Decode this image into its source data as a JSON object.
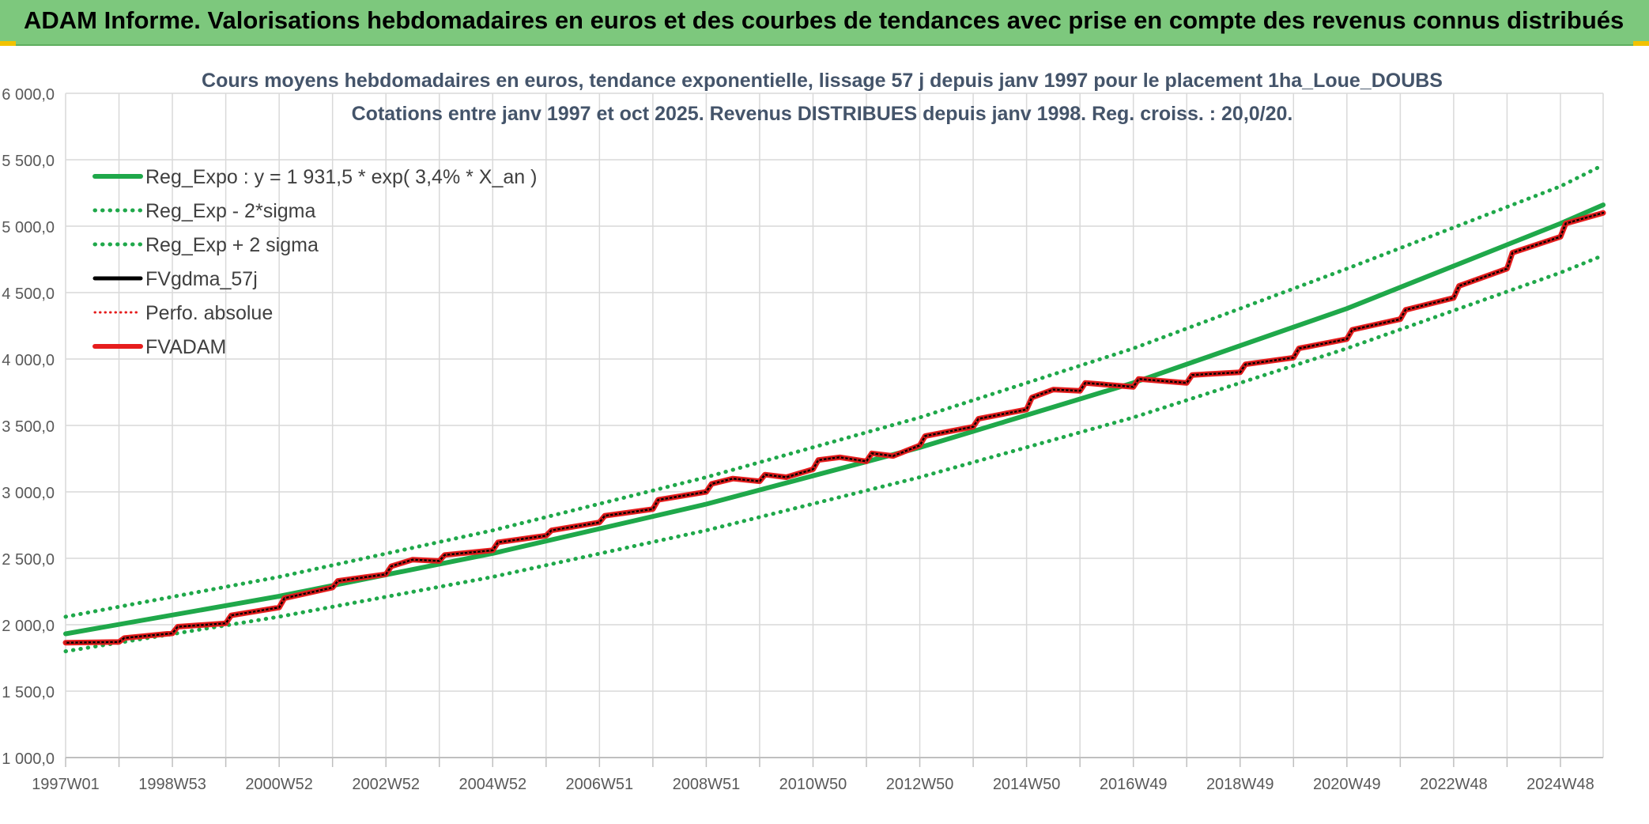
{
  "banner": {
    "title": "ADAM Informe. Valorisations hebdomadaires en euros et des courbes de tendances avec prise en compte des revenus connus distribués",
    "background": "#7dc87d"
  },
  "chart_data": {
    "type": "line",
    "title": "Cours moyens hebdomadaires en euros, tendance exponentielle, lissage 57 j depuis janv 1997 pour le placement 1ha_Loue_DOUBS",
    "subtitle": "Cotations entre janv 1997 et oct 2025. Revenus DISTRIBUES depuis janv 1998. Reg. croiss. : 20,0/20.",
    "xlabel": "",
    "ylabel": "",
    "x_range": [
      1997.0,
      2025.8
    ],
    "ylim": [
      1000,
      6000
    ],
    "y_ticks": [
      1000,
      1500,
      2000,
      2500,
      3000,
      3500,
      4000,
      4500,
      5000,
      5500,
      6000
    ],
    "y_tick_labels": [
      "1 000,0",
      "1 500,0",
      "2 000,0",
      "2 500,0",
      "3 000,0",
      "3 500,0",
      "4 000,0",
      "4 500,0",
      "5 000,0",
      "5 500,0",
      "6 000,0"
    ],
    "x_tick_labels": [
      {
        "label": "1997W01",
        "x": 1997.0
      },
      {
        "label": "1998W53",
        "x": 1999.0
      },
      {
        "label": "2000W52",
        "x": 2001.0
      },
      {
        "label": "2002W52",
        "x": 2003.0
      },
      {
        "label": "2004W52",
        "x": 2005.0
      },
      {
        "label": "2006W51",
        "x": 2007.0
      },
      {
        "label": "2008W51",
        "x": 2009.0
      },
      {
        "label": "2010W50",
        "x": 2011.0
      },
      {
        "label": "2012W50",
        "x": 2013.0
      },
      {
        "label": "2014W50",
        "x": 2015.0
      },
      {
        "label": "2016W49",
        "x": 2017.0
      },
      {
        "label": "2018W49",
        "x": 2019.0
      },
      {
        "label": "2020W49",
        "x": 2021.0
      },
      {
        "label": "2022W48",
        "x": 2023.0
      },
      {
        "label": "2024W48",
        "x": 2025.0
      }
    ],
    "minor_gridlines_x": [
      1998.0,
      2000.0,
      2002.0,
      2004.0,
      2006.0,
      2008.0,
      2010.0,
      2012.0,
      2014.0,
      2016.0,
      2018.0,
      2020.0,
      2022.0,
      2024.0
    ],
    "grid": true,
    "legend_position": "top-left",
    "series": [
      {
        "name": "Reg_Expo : y = 1 931,5 * exp( 3,4% *  X_an )",
        "color": "#1fa84a",
        "style": "solid",
        "x": [
          1997.0,
          2001.0,
          2005.0,
          2009.0,
          2013.0,
          2017.0,
          2021.0,
          2025.0,
          2025.8
        ],
        "values": [
          1931.5,
          2214,
          2537,
          2908,
          3334,
          3821,
          4380,
          5020,
          5160
        ]
      },
      {
        "name": "Reg_Exp - 2*sigma",
        "color": "#1fa84a",
        "style": "dotted",
        "x": [
          1997.0,
          2001.0,
          2005.0,
          2009.0,
          2013.0,
          2017.0,
          2021.0,
          2025.0,
          2025.8
        ],
        "values": [
          1800,
          2060,
          2360,
          2710,
          3110,
          3560,
          4080,
          4650,
          4780
        ]
      },
      {
        "name": "Reg_Exp + 2 sigma",
        "color": "#1fa84a",
        "style": "dotted",
        "x": [
          1997.0,
          2001.0,
          2005.0,
          2009.0,
          2013.0,
          2017.0,
          2021.0,
          2025.0,
          2025.8
        ],
        "values": [
          2060,
          2360,
          2710,
          3110,
          3560,
          4080,
          4680,
          5300,
          5460
        ]
      },
      {
        "name": "FVgdma_57j",
        "color": "#000000",
        "style": "solid",
        "x": [
          1997.0,
          1998.0,
          1998.1,
          1999.0,
          1999.1,
          2000.0,
          2000.1,
          2001.0,
          2001.1,
          2002.0,
          2002.1,
          2003.0,
          2003.1,
          2003.5,
          2004.0,
          2004.1,
          2005.0,
          2005.1,
          2006.0,
          2006.1,
          2007.0,
          2007.1,
          2008.0,
          2008.1,
          2009.0,
          2009.1,
          2009.5,
          2010.0,
          2010.1,
          2010.5,
          2011.0,
          2011.1,
          2011.5,
          2012.0,
          2012.1,
          2012.5,
          2013.0,
          2013.1,
          2014.0,
          2014.1,
          2015.0,
          2015.1,
          2015.5,
          2016.0,
          2016.1,
          2017.0,
          2017.1,
          2018.0,
          2018.1,
          2019.0,
          2019.1,
          2020.0,
          2020.1,
          2021.0,
          2021.1,
          2022.0,
          2022.1,
          2023.0,
          2023.1,
          2024.0,
          2024.1,
          2025.0,
          2025.1,
          2025.8
        ],
        "values": [
          1865,
          1870,
          1900,
          1935,
          1985,
          2010,
          2070,
          2130,
          2200,
          2280,
          2330,
          2380,
          2440,
          2490,
          2480,
          2525,
          2560,
          2620,
          2670,
          2710,
          2770,
          2820,
          2870,
          2940,
          3000,
          3060,
          3100,
          3080,
          3130,
          3110,
          3170,
          3240,
          3260,
          3230,
          3290,
          3270,
          3350,
          3420,
          3490,
          3550,
          3620,
          3710,
          3770,
          3760,
          3820,
          3790,
          3850,
          3820,
          3880,
          3900,
          3960,
          4010,
          4080,
          4150,
          4220,
          4300,
          4370,
          4460,
          4550,
          4680,
          4800,
          4920,
          5020,
          5100
        ]
      },
      {
        "name": "Perfo. absolue",
        "color": "#e61d1d",
        "style": "dotted",
        "x": [
          1997.0,
          1998.0,
          1998.1,
          1999.0,
          1999.1,
          2000.0,
          2000.1,
          2001.0,
          2001.1,
          2002.0,
          2002.1,
          2003.0,
          2003.1,
          2003.5,
          2004.0,
          2004.1,
          2005.0,
          2005.1,
          2006.0,
          2006.1,
          2007.0,
          2007.1,
          2008.0,
          2008.1,
          2009.0,
          2009.1,
          2009.5,
          2010.0,
          2010.1,
          2010.5,
          2011.0,
          2011.1,
          2011.5,
          2012.0,
          2012.1,
          2012.5,
          2013.0,
          2013.1,
          2014.0,
          2014.1,
          2015.0,
          2015.1,
          2015.5,
          2016.0,
          2016.1,
          2017.0,
          2017.1,
          2018.0,
          2018.1,
          2019.0,
          2019.1,
          2020.0,
          2020.1,
          2021.0,
          2021.1,
          2022.0,
          2022.1,
          2023.0,
          2023.1,
          2024.0,
          2024.1,
          2025.0,
          2025.1,
          2025.8
        ],
        "values": [
          1865,
          1870,
          1900,
          1935,
          1985,
          2010,
          2070,
          2130,
          2200,
          2280,
          2330,
          2380,
          2440,
          2490,
          2480,
          2525,
          2560,
          2620,
          2670,
          2710,
          2770,
          2820,
          2870,
          2940,
          3000,
          3060,
          3100,
          3080,
          3130,
          3110,
          3170,
          3240,
          3260,
          3230,
          3290,
          3270,
          3350,
          3420,
          3490,
          3550,
          3620,
          3710,
          3770,
          3760,
          3820,
          3790,
          3850,
          3820,
          3880,
          3900,
          3960,
          4010,
          4080,
          4150,
          4220,
          4300,
          4370,
          4460,
          4550,
          4680,
          4800,
          4920,
          5020,
          5100
        ]
      },
      {
        "name": "FVADAM",
        "color": "#e61d1d",
        "style": "solid",
        "x": [
          1997.0,
          1998.0,
          1998.1,
          1999.0,
          1999.1,
          2000.0,
          2000.1,
          2001.0,
          2001.1,
          2002.0,
          2002.1,
          2003.0,
          2003.1,
          2003.5,
          2004.0,
          2004.1,
          2005.0,
          2005.1,
          2006.0,
          2006.1,
          2007.0,
          2007.1,
          2008.0,
          2008.1,
          2009.0,
          2009.1,
          2009.5,
          2010.0,
          2010.1,
          2010.5,
          2011.0,
          2011.1,
          2011.5,
          2012.0,
          2012.1,
          2012.5,
          2013.0,
          2013.1,
          2014.0,
          2014.1,
          2015.0,
          2015.1,
          2015.5,
          2016.0,
          2016.1,
          2017.0,
          2017.1,
          2018.0,
          2018.1,
          2019.0,
          2019.1,
          2020.0,
          2020.1,
          2021.0,
          2021.1,
          2022.0,
          2022.1,
          2023.0,
          2023.1,
          2024.0,
          2024.1,
          2025.0,
          2025.1,
          2025.8
        ],
        "values": [
          1865,
          1870,
          1900,
          1935,
          1985,
          2010,
          2070,
          2130,
          2200,
          2280,
          2330,
          2380,
          2440,
          2490,
          2480,
          2525,
          2560,
          2620,
          2670,
          2710,
          2770,
          2820,
          2870,
          2940,
          3000,
          3060,
          3100,
          3080,
          3130,
          3110,
          3170,
          3240,
          3260,
          3230,
          3290,
          3270,
          3350,
          3420,
          3490,
          3550,
          3620,
          3710,
          3770,
          3760,
          3820,
          3790,
          3850,
          3820,
          3880,
          3900,
          3960,
          4010,
          4080,
          4150,
          4220,
          4300,
          4370,
          4460,
          4550,
          4680,
          4800,
          4920,
          5020,
          5100
        ]
      }
    ]
  }
}
